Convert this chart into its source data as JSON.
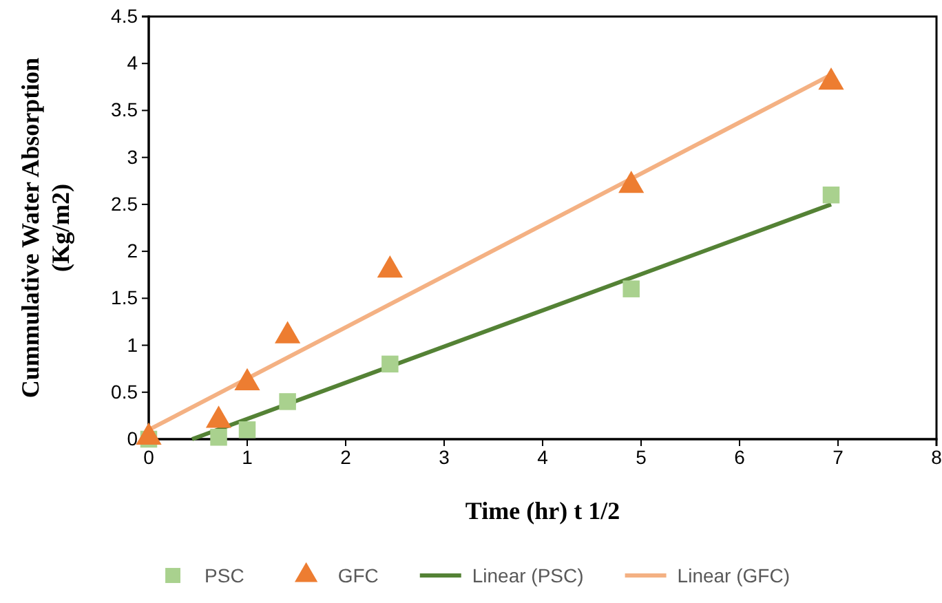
{
  "chart_data": {
    "type": "scatter",
    "xlabel": "Time (hr) t 1/2",
    "ylabel": "Cummulative Water Absorption (Kg/m2)",
    "xlim": [
      0,
      8
    ],
    "xticks": [
      0,
      1,
      2,
      3,
      4,
      5,
      6,
      7,
      8
    ],
    "ylim": [
      0,
      4.5
    ],
    "yticks": [
      0,
      0.5,
      1,
      1.5,
      2,
      2.5,
      3,
      3.5,
      4,
      4.5
    ],
    "grid": false,
    "legend": "bottom",
    "series": [
      {
        "name": "PSC",
        "marker": "square",
        "color": "#a9d18e",
        "x": [
          0,
          0.71,
          1,
          1.41,
          2.45,
          4.9,
          6.93
        ],
        "values": [
          0,
          0.02,
          0.1,
          0.4,
          0.8,
          1.6,
          2.6
        ]
      },
      {
        "name": "GFC",
        "marker": "triangle",
        "color": "#ed7d31",
        "x": [
          0,
          0.71,
          1,
          1.41,
          2.45,
          4.9,
          6.93
        ],
        "values": [
          0.02,
          0.2,
          0.6,
          1.1,
          1.8,
          2.7,
          3.8
        ]
      },
      {
        "name": "Linear (PSC)",
        "type": "line",
        "marker": "none",
        "color": "#548235",
        "x": [
          0.44,
          6.93
        ],
        "values": [
          0,
          2.5
        ]
      },
      {
        "name": "Linear (GFC)",
        "type": "line",
        "marker": "none",
        "color": "#f4b183",
        "x": [
          0,
          6.93
        ],
        "values": [
          0.1,
          3.88
        ]
      }
    ]
  }
}
